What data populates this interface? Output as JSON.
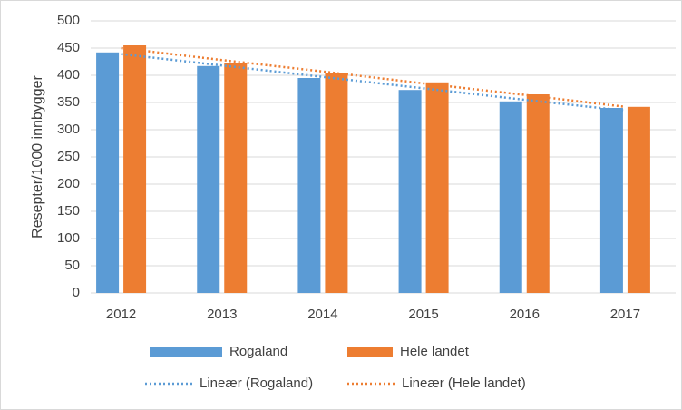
{
  "chart_data": {
    "type": "bar",
    "y_label": "Resepter/1000 innbygger",
    "categories": [
      "2012",
      "2013",
      "2014",
      "2015",
      "2016",
      "2017"
    ],
    "series": [
      {
        "name": "Rogaland",
        "color": "#5b9bd5",
        "values": [
          442,
          417,
          395,
          373,
          352,
          340
        ]
      },
      {
        "name": "Hele landet",
        "color": "#ed7d31",
        "values": [
          455,
          422,
          405,
          387,
          365,
          342
        ]
      },
      {
        "name": "Lineær (Rogaland)",
        "color": "#5b9bd5",
        "type": "line",
        "style": "dotted",
        "values": [
          439,
          418,
          397,
          376,
          355,
          335
        ]
      },
      {
        "name": "Lineær (Hele landet)",
        "color": "#ed7d31",
        "type": "line",
        "style": "dotted",
        "values": [
          450,
          428,
          407,
          385,
          364,
          342
        ]
      }
    ],
    "ylim": [
      0,
      500
    ],
    "yticks": [
      0,
      50,
      100,
      150,
      200,
      250,
      300,
      350,
      400,
      450,
      500
    ],
    "grid": true
  }
}
